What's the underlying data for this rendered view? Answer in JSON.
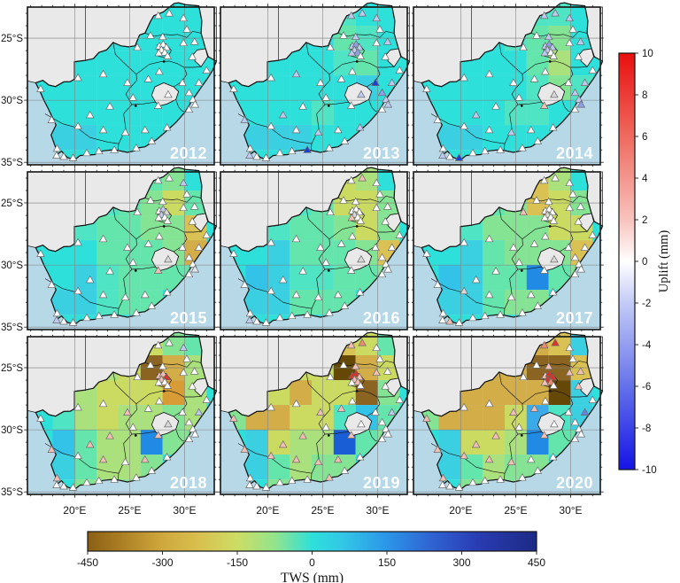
{
  "figure": {
    "kind": "multi-panel geographic heatmap",
    "region": "South Africa"
  },
  "axes": {
    "x_ticks": [
      {
        "label": "20°E",
        "lon": 20
      },
      {
        "label": "25°E",
        "lon": 25
      },
      {
        "label": "30°E",
        "lon": 30
      }
    ],
    "y_ticks": [
      {
        "label": "25°S",
        "lat": 25
      },
      {
        "label": "30°S",
        "lat": 30
      },
      {
        "label": "35°S",
        "lat": 35
      }
    ]
  },
  "colorbars": {
    "uplift": {
      "title": "Uplift (mm)",
      "min": -10,
      "max": 10,
      "ticks": [
        10,
        8,
        6,
        4,
        2,
        0,
        -2,
        -4,
        -6,
        -8,
        -10
      ],
      "gradient": [
        [
          0,
          "#e90f0f"
        ],
        [
          0.2,
          "#ef6a5e"
        ],
        [
          0.4,
          "#f8c3bd"
        ],
        [
          0.5,
          "#ffffff"
        ],
        [
          0.6,
          "#c3cbf6"
        ],
        [
          0.8,
          "#6472ea"
        ],
        [
          1,
          "#1414e6"
        ]
      ]
    },
    "tws": {
      "title": "TWS (mm)",
      "min": -450,
      "max": 450,
      "ticks": [
        -450,
        -300,
        -150,
        0,
        150,
        300,
        450
      ],
      "gradient": [
        [
          0,
          "#8a5f14"
        ],
        [
          0.067,
          "#a87b22"
        ],
        [
          0.167,
          "#cfa83d"
        ],
        [
          0.25,
          "#d9c04f"
        ],
        [
          0.333,
          "#cddd65"
        ],
        [
          0.417,
          "#93e48c"
        ],
        [
          0.5,
          "#2ee0da"
        ],
        [
          0.567,
          "#32c8e6"
        ],
        [
          0.667,
          "#2b95e8"
        ],
        [
          0.767,
          "#2f63d2"
        ],
        [
          0.867,
          "#2a3cb4"
        ],
        [
          1,
          "#1c2a84"
        ]
      ]
    }
  },
  "map_colors": {
    "ocean": "#b7d8e7",
    "land": "#e9e9e9",
    "border": "#151515",
    "grid": "#7d7d7d",
    "year_label": "#ffffff",
    "tick_text": "#151515",
    "marker_edge": "#6a6a6a"
  },
  "palette": {
    "C": "#2ee0da",
    "C2": "#3ad0e2",
    "C3": "#33c2e8",
    "CG": "#4fe4c4",
    "G1": "#63e5ac",
    "G2": "#85e493",
    "G3": "#abe17c",
    "Y1": "#cbdb62",
    "Y2": "#d9c253",
    "T1": "#d3ad47",
    "O1": "#d89c37",
    "B1": "#8a6420",
    "B2": "#664806",
    "LB": "#3aaae8",
    "BL": "#218ae4",
    "DB": "#1a5ed6",
    "W": "#ffffff",
    "LG": "#e4e4ea",
    "GY": "#d8d8d8",
    "LV": "#bdc9ef",
    "MB": "#8ea0e8",
    "VB": "#6e80de",
    "DBL": "#1d3ed2",
    "PK": "#f3bfb4",
    "OR": "#ef8a74",
    "RD": "#e03126"
  },
  "stations": [
    [
      16.9,
      29.1
    ],
    [
      17.9,
      31.6
    ],
    [
      18.4,
      33.9
    ],
    [
      18.35,
      34.45
    ],
    [
      19.0,
      34.55
    ],
    [
      19.85,
      34.65
    ],
    [
      21.1,
      34.25
    ],
    [
      22.2,
      34.1
    ],
    [
      23.6,
      34.0
    ],
    [
      25.6,
      33.85
    ],
    [
      27.0,
      33.3
    ],
    [
      28.4,
      32.2
    ],
    [
      26.4,
      32.4
    ],
    [
      24.6,
      32.6
    ],
    [
      22.6,
      32.4
    ],
    [
      20.3,
      32.1
    ],
    [
      21.4,
      31.2
    ],
    [
      23.2,
      30.5
    ],
    [
      25.3,
      29.8
    ],
    [
      20.3,
      28.2
    ],
    [
      22.6,
      27.9
    ],
    [
      24.8,
      28.6
    ],
    [
      26.7,
      28.3
    ],
    [
      27.7,
      27.7
    ],
    [
      27.6,
      30.45
    ],
    [
      29.8,
      28.6
    ],
    [
      30.4,
      29.4
    ],
    [
      30.75,
      29.95
    ],
    [
      30.95,
      30.35
    ],
    [
      30.4,
      30.75
    ],
    [
      31.3,
      28.6
    ],
    [
      27.7,
      25.65
    ],
    [
      28.05,
      25.5
    ],
    [
      28.35,
      25.75
    ],
    [
      27.9,
      25.95
    ],
    [
      28.2,
      26.15
    ],
    [
      27.65,
      26.2
    ],
    [
      28.45,
      26.45
    ],
    [
      28.0,
      24.9
    ],
    [
      26.9,
      24.8
    ],
    [
      25.7,
      25.75
    ],
    [
      27.6,
      23.2
    ],
    [
      28.6,
      23.0
    ],
    [
      29.9,
      23.4
    ],
    [
      29.9,
      25.4
    ],
    [
      30.9,
      25.3
    ],
    [
      30.7,
      26.5
    ],
    [
      30.2,
      24.3
    ],
    [
      28.5,
      29.55
    ],
    [
      32.0,
      27.6
    ]
  ],
  "years": [
    {
      "label": "2012",
      "tri_default": "W",
      "tri": {},
      "cells": [
        [
          "C",
          "C",
          "C",
          "C",
          "C",
          "C",
          "C",
          "C",
          "C"
        ],
        [
          "C",
          "C",
          "C",
          "C",
          "C",
          "C",
          "C",
          "C",
          "C"
        ],
        [
          "C",
          "C",
          "C",
          "C",
          "C",
          "C",
          "C",
          "C",
          "C"
        ],
        [
          "C",
          "C",
          "C",
          "C",
          "C",
          "C",
          "C",
          "C",
          "C"
        ],
        [
          "C",
          "C",
          "C",
          "C",
          "C",
          "C",
          "C",
          "C",
          "C"
        ],
        [
          "C",
          "C2",
          "C2",
          "C",
          "C",
          "C",
          "C",
          "C",
          "C"
        ],
        [
          "C",
          "C",
          "C",
          "C",
          "C",
          "C",
          "C",
          "C",
          "C"
        ]
      ]
    },
    {
      "label": "2013",
      "tri_default": "W",
      "tri": {
        "1": "LV",
        "3": "LV",
        "8": "DBL",
        "11": "LV",
        "13": "LV",
        "16": "LV",
        "20": "LV",
        "25": "DBL",
        "26": "MB",
        "27": "LV",
        "28": "LV",
        "30": "LV",
        "31": "LV",
        "32": "MB",
        "33": "LV",
        "34": "LV",
        "35": "MB",
        "36": "LV",
        "38": "LV",
        "41": "LV",
        "42": "LV",
        "43": "LV",
        "45": "LV",
        "48": "LV"
      },
      "cells": [
        [
          "C",
          "C",
          "C",
          "C",
          "C",
          "CG",
          "C",
          "C",
          "C"
        ],
        [
          "C",
          "C",
          "C",
          "C",
          "C",
          "G1",
          "CG",
          "C",
          "C"
        ],
        [
          "C",
          "C",
          "C",
          "C",
          "C",
          "CG",
          "G1",
          "C",
          "C"
        ],
        [
          "C",
          "C",
          "C",
          "C",
          "C",
          "C",
          "C2",
          "C",
          "C"
        ],
        [
          "C",
          "C",
          "C",
          "C",
          "CG",
          "C",
          "C",
          "C",
          "C"
        ],
        [
          "C",
          "C2",
          "C2",
          "C2",
          "C",
          "C",
          "C",
          "C",
          "C"
        ],
        [
          "C",
          "C",
          "C",
          "C",
          "C",
          "C",
          "C",
          "C",
          "C"
        ]
      ]
    },
    {
      "label": "2014",
      "tri_default": "W",
      "tri": {
        "3": "LV",
        "5": "DBL",
        "13": "LV",
        "16": "LV",
        "24": "PK",
        "26": "LV",
        "27": "LV",
        "28": "MB",
        "30": "LV",
        "31": "LV",
        "32": "MB",
        "33": "LV",
        "34": "LV",
        "36": "LV",
        "38": "LV",
        "41": "LV",
        "42": "LV",
        "43": "LV",
        "45": "LV",
        "48": "GY"
      },
      "cells": [
        [
          "C",
          "C",
          "C",
          "C",
          "C",
          "CG",
          "CG",
          "C",
          "C"
        ],
        [
          "C",
          "C",
          "C",
          "C",
          "CG",
          "G1",
          "G2",
          "C",
          "C"
        ],
        [
          "C",
          "C",
          "C",
          "C",
          "C",
          "G1",
          "G3",
          "C",
          "C"
        ],
        [
          "C",
          "C",
          "C",
          "C",
          "C",
          "CG",
          "G2",
          "CG",
          "C"
        ],
        [
          "C",
          "C",
          "C",
          "C",
          "CG",
          "CG",
          "C",
          "C",
          "C"
        ],
        [
          "C",
          "C2",
          "C2",
          "C",
          "C",
          "C",
          "C",
          "C",
          "C"
        ],
        [
          "C",
          "C",
          "C",
          "C",
          "C",
          "C",
          "C",
          "C",
          "C"
        ]
      ]
    },
    {
      "label": "2015",
      "tri_default": "W",
      "tri": {
        "3": "LV",
        "24": "PK",
        "28": "LG",
        "32": "LV",
        "33": "GY",
        "34": "LV",
        "43": "LV",
        "48": "GY"
      },
      "cells": [
        [
          "C",
          "C",
          "C",
          "C",
          "CG",
          "G1",
          "G2",
          "C",
          "C"
        ],
        [
          "C",
          "C",
          "C",
          "CG",
          "G1",
          "G2",
          "Y1",
          "G1",
          "C"
        ],
        [
          "C",
          "C",
          "CG",
          "G1",
          "G1",
          "G2",
          "G2",
          "Y2",
          "C"
        ],
        [
          "C",
          "C",
          "C",
          "G1",
          "G1",
          "G1",
          "G2",
          "T1",
          "C"
        ],
        [
          "C",
          "C",
          "C2",
          "CG",
          "G1",
          "G1",
          "G1",
          "G1",
          "C"
        ],
        [
          "C",
          "C2",
          "C2",
          "CG",
          "G1",
          "G1",
          "C",
          "C",
          "C"
        ],
        [
          "C",
          "C",
          "C",
          "C",
          "C",
          "C",
          "C",
          "C",
          "C"
        ]
      ]
    },
    {
      "label": "2016",
      "tri_default": "W",
      "tri": {
        "3": "LV",
        "34": "GY",
        "36": "PK",
        "42": "PK",
        "48": "GY"
      },
      "cells": [
        [
          "C",
          "C",
          "C",
          "C",
          "G1",
          "Y1",
          "G3",
          "C",
          "C"
        ],
        [
          "C",
          "C",
          "C",
          "CG",
          "G1",
          "Y1",
          "Y1",
          "G2",
          "C"
        ],
        [
          "C",
          "C",
          "CG",
          "G1",
          "G1",
          "G2",
          "Y1",
          "G2",
          "C"
        ],
        [
          "C",
          "C",
          "C2",
          "G1",
          "G1",
          "G1",
          "G2",
          "Y2",
          "C"
        ],
        [
          "C",
          "C3",
          "C2",
          "CG",
          "CG",
          "G1",
          "G1",
          "G2",
          "C"
        ],
        [
          "C",
          "C2",
          "C2",
          "G1",
          "G1",
          "G1",
          "C",
          "C",
          "C"
        ],
        [
          "C",
          "C",
          "C",
          "C",
          "C",
          "C",
          "C",
          "C",
          "C"
        ]
      ]
    },
    {
      "label": "2017",
      "tri_default": "W",
      "tri": {
        "4": "PK",
        "15": "GY",
        "34": "GY",
        "40": "PK",
        "48": "GY"
      },
      "cells": [
        [
          "C",
          "C",
          "C",
          "C",
          "G2",
          "Y2",
          "G3",
          "C",
          "C"
        ],
        [
          "C",
          "C",
          "C",
          "G1",
          "G2",
          "Y2",
          "Y1",
          "G2",
          "C"
        ],
        [
          "C",
          "C",
          "CG",
          "G2",
          "G2",
          "G2",
          "Y1",
          "Y1",
          "C"
        ],
        [
          "C",
          "C",
          "C2",
          "G1",
          "G2",
          "G2",
          "G2",
          "Y2",
          "C"
        ],
        [
          "C",
          "C3",
          "C2",
          "G1",
          "G1",
          "BL",
          "G1",
          "G2",
          "C"
        ],
        [
          "C",
          "C2",
          "C2",
          "G1",
          "G2",
          "G2",
          "C",
          "C",
          "C"
        ],
        [
          "C",
          "C",
          "C",
          "C",
          "C",
          "C",
          "C",
          "C",
          "C"
        ]
      ]
    },
    {
      "label": "2018",
      "tri_default": "W",
      "tri": {
        "1": "PK",
        "2": "PK",
        "12": "PK",
        "14": "PK",
        "16": "PK",
        "17": "PK",
        "21": "PK",
        "24": "PK",
        "30": "LV",
        "31": "PK",
        "32": "PK",
        "33": "RD",
        "34": "PK",
        "43": "LV",
        "48": "GY"
      },
      "cells": [
        [
          "C",
          "C",
          "C",
          "G2",
          "G3",
          "Y1",
          "G2",
          "G1",
          "C"
        ],
        [
          "C",
          "C",
          "G1",
          "G3",
          "Y1",
          "B1",
          "T1",
          "G3",
          "C"
        ],
        [
          "C",
          "C",
          "G3",
          "Y1",
          "Y1",
          "Y1",
          "O1",
          "G3",
          "C"
        ],
        [
          "C",
          "CG",
          "G3",
          "Y1",
          "G3",
          "G3",
          "G2",
          "G3",
          "C"
        ],
        [
          "C",
          "C3",
          "G1",
          "G3",
          "G3",
          "BL",
          "G2",
          "G2",
          "C"
        ],
        [
          "C",
          "C2",
          "G1",
          "G3",
          "G3",
          "G2",
          "C",
          "C",
          "C"
        ],
        [
          "C",
          "C",
          "G2",
          "G2",
          "G2",
          "C",
          "C",
          "C",
          "C"
        ]
      ]
    },
    {
      "label": "2019",
      "tri_default": "W",
      "tri": {
        "0": "PK",
        "1": "PK",
        "9": "PK",
        "12": "PK",
        "13": "PK",
        "14": "PK",
        "15": "PK",
        "16": "PK",
        "17": "PK",
        "21": "PK",
        "22": "PK",
        "24": "PK",
        "30": "LV",
        "31": "RD",
        "32": "RD",
        "33": "PK",
        "34": "PK",
        "35": "PK",
        "38": "PK",
        "41": "PK",
        "42": "OR",
        "44": "PK"
      },
      "cells": [
        [
          "C",
          "C",
          "G1",
          "Y1",
          "Y1",
          "Y2",
          "Y1",
          "G1",
          "C"
        ],
        [
          "C",
          "C",
          "G2",
          "Y1",
          "Y1",
          "B2",
          "T1",
          "Y1",
          "C"
        ],
        [
          "C",
          "G1",
          "Y1",
          "T1",
          "Y1",
          "Y1",
          "B1",
          "G2",
          "C"
        ],
        [
          "G2",
          "T1",
          "T1",
          "Y1",
          "Y1",
          "CG",
          "C3",
          "G1",
          "C"
        ],
        [
          "C",
          "C2",
          "Y1",
          "G3",
          "G3",
          "DB",
          "G1",
          "G2",
          "C"
        ],
        [
          "C",
          "C2",
          "G1",
          "G3",
          "G2",
          "G2",
          "C",
          "C",
          "C"
        ],
        [
          "C",
          "C",
          "G2",
          "G2",
          "G2",
          "C",
          "C",
          "C",
          "C"
        ]
      ]
    },
    {
      "label": "2020",
      "tri_default": "W",
      "tri": {
        "0": "PK",
        "1": "PK",
        "2": "PK",
        "13": "PK",
        "14": "PK",
        "15": "PK",
        "16": "PK",
        "17": "PK",
        "21": "PK",
        "22": "PK",
        "24": "PK",
        "30": "VB",
        "31": "PK",
        "32": "RD",
        "33": "RD",
        "34": "RD",
        "35": "OR",
        "36": "PK",
        "38": "PK",
        "41": "OR",
        "42": "RD",
        "44": "PK",
        "45": "PK",
        "46": "PK"
      },
      "cells": [
        [
          "C",
          "C",
          "G1",
          "Y2",
          "T1",
          "T1",
          "Y2",
          "C2",
          "C"
        ],
        [
          "C",
          "C",
          "Y1",
          "T1",
          "T1",
          "B1",
          "B1",
          "Y2",
          "C"
        ],
        [
          "C",
          "G1",
          "T1",
          "T1",
          "T1",
          "T1",
          "B2",
          "C2",
          "C"
        ],
        [
          "G2",
          "T1",
          "T1",
          "T1",
          "Y1",
          "LB",
          "CG",
          "C2",
          "C"
        ],
        [
          "C",
          "C2",
          "Y1",
          "Y1",
          "G3",
          "BL",
          "G1",
          "G1",
          "C"
        ],
        [
          "C",
          "C2",
          "G1",
          "G3",
          "G2",
          "G2",
          "C",
          "C",
          "C"
        ],
        [
          "C",
          "C",
          "G2",
          "G2",
          "G2",
          "C",
          "C",
          "C",
          "C"
        ]
      ]
    }
  ],
  "chart_data": {
    "type": "heatmap",
    "subtype": "geographic small multiples (South Africa)",
    "panels": [
      "2012",
      "2013",
      "2014",
      "2015",
      "2016",
      "2017",
      "2018",
      "2019",
      "2020"
    ],
    "x_axis": {
      "ticks": [
        "20°E",
        "25°E",
        "30°E"
      ]
    },
    "y_axis": {
      "ticks": [
        "25°S",
        "30°S",
        "35°S"
      ]
    },
    "legend_colorbars": [
      {
        "label": "Uplift (mm)",
        "range": [
          -10,
          10
        ],
        "tick_step": 2,
        "scheme": "red-white-blue",
        "encodes": "triangle station markers"
      },
      {
        "label": "TWS (mm)",
        "range": [
          -450,
          450
        ],
        "tick_step": 150,
        "scheme": "brown-gold-yellowgreen-cyan-blue-navy",
        "encodes": "2° grid cells"
      }
    ],
    "cell_grid": {
      "lon_origin": 16,
      "lat_origin": 22,
      "cell_size_deg": 2,
      "rows": 7,
      "cols": 9,
      "note": "per-year cell colors are palette keys in years[].cells; per-year marker colors in years[].tri"
    }
  }
}
